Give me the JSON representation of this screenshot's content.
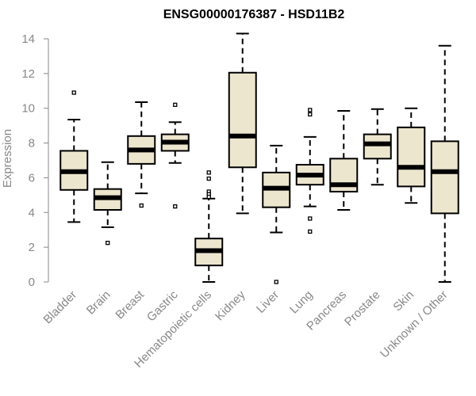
{
  "chart_data": {
    "type": "boxplot",
    "title": "ENSG00000176387 - HSD11B2",
    "xlabel": "",
    "ylabel": "Expression",
    "ylim": [
      0,
      14
    ],
    "yticks": [
      0,
      2,
      4,
      6,
      8,
      10,
      12,
      14
    ],
    "colors": {
      "box_fill": "#ede6cf",
      "stroke": "#000000",
      "axis": "#888888"
    },
    "categories": [
      "Bladder",
      "Brain",
      "Breast",
      "Gastric",
      "Hematopoietic cells",
      "Kidney",
      "Liver",
      "Lung",
      "Pancreas",
      "Prostate",
      "Skin",
      "Unknown / Other"
    ],
    "boxes": [
      {
        "name": "Bladder",
        "whisker_low": 3.45,
        "q1": 5.3,
        "median": 6.35,
        "q3": 7.55,
        "whisker_high": 9.35,
        "outliers": [
          10.9
        ]
      },
      {
        "name": "Brain",
        "whisker_low": 3.15,
        "q1": 4.15,
        "median": 4.85,
        "q3": 5.35,
        "whisker_high": 6.9,
        "outliers": [
          2.25
        ]
      },
      {
        "name": "Breast",
        "whisker_low": 5.1,
        "q1": 6.8,
        "median": 7.6,
        "q3": 8.4,
        "whisker_high": 10.35,
        "outliers": [
          4.4
        ]
      },
      {
        "name": "Gastric",
        "whisker_low": 6.85,
        "q1": 7.55,
        "median": 8.05,
        "q3": 8.5,
        "whisker_high": 9.2,
        "outliers": [
          10.2,
          4.35
        ]
      },
      {
        "name": "Hematopoietic cells",
        "whisker_low": 0.0,
        "q1": 0.95,
        "median": 1.8,
        "q3": 2.5,
        "whisker_high": 4.8,
        "outliers": [
          6.3,
          5.95,
          5.2,
          5.05,
          4.9
        ]
      },
      {
        "name": "Kidney",
        "whisker_low": 3.95,
        "q1": 6.6,
        "median": 8.4,
        "q3": 12.05,
        "whisker_high": 14.3,
        "outliers": []
      },
      {
        "name": "Liver",
        "whisker_low": 2.85,
        "q1": 4.3,
        "median": 5.4,
        "q3": 6.3,
        "whisker_high": 7.85,
        "outliers": [
          0.0
        ]
      },
      {
        "name": "Lung",
        "whisker_low": 4.35,
        "q1": 5.6,
        "median": 6.15,
        "q3": 6.75,
        "whisker_high": 8.35,
        "outliers": [
          9.9,
          9.65,
          3.65,
          2.9
        ]
      },
      {
        "name": "Pancreas",
        "whisker_low": 4.15,
        "q1": 5.2,
        "median": 5.6,
        "q3": 7.1,
        "whisker_high": 9.85,
        "outliers": []
      },
      {
        "name": "Prostate",
        "whisker_low": 5.6,
        "q1": 7.1,
        "median": 7.95,
        "q3": 8.5,
        "whisker_high": 9.95,
        "outliers": []
      },
      {
        "name": "Skin",
        "whisker_low": 4.55,
        "q1": 5.5,
        "median": 6.6,
        "q3": 8.9,
        "whisker_high": 10.0,
        "outliers": []
      },
      {
        "name": "Unknown / Other",
        "whisker_low": 0.0,
        "q1": 3.95,
        "median": 6.35,
        "q3": 8.1,
        "whisker_high": 13.6,
        "outliers": []
      }
    ]
  }
}
